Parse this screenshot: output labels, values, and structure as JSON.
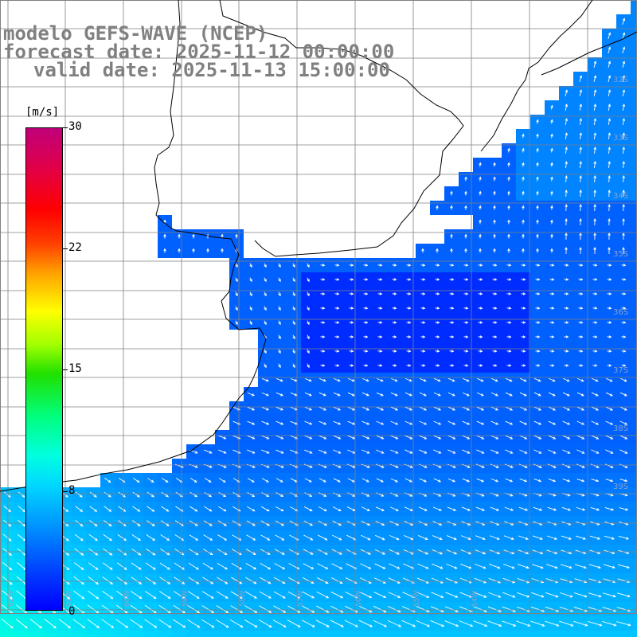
{
  "title": {
    "line1": "modelo GEFS-WAVE (NCEP)",
    "line2": "forecast date: 2025-11-12 00:00:00",
    "line3": "valid date: 2025-11-13 15:00:00"
  },
  "colorbar": {
    "units": "[m/s]",
    "ticks": [
      "30",
      "22",
      "15",
      "8",
      "0"
    ],
    "min": 0,
    "max": 30
  },
  "map_labels": {
    "latitudes": [
      "32S",
      "33S",
      "34S",
      "35S",
      "36S",
      "37S",
      "38S",
      "39S"
    ],
    "longitudes": [
      "62W",
      "61W",
      "60W",
      "59W",
      "58W",
      "57W",
      "56W",
      "55W",
      "54W"
    ]
  },
  "colors": {
    "land": "#ffffff",
    "grid": "#808080",
    "coast": "#000000",
    "arrows": "#ffffff",
    "title_text": "#808080"
  }
}
